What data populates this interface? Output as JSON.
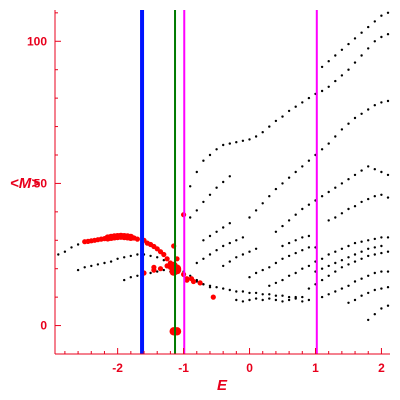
{
  "chart_data": {
    "type": "scatter",
    "title": "",
    "xlabel": "E",
    "ylabel": "<M>",
    "xlim": [
      -2.95,
      2.13
    ],
    "ylim": [
      -10,
      111
    ],
    "x_ticks": [
      -2,
      -1,
      0,
      1,
      2
    ],
    "x_tick_labels": [
      "-2",
      "-1",
      "0",
      "1",
      "2"
    ],
    "y_ticks": [
      0,
      50,
      100
    ],
    "y_tick_labels": [
      "0",
      "50",
      "100"
    ],
    "grid": false,
    "legend": "none",
    "colors": {
      "axis": "#e8001c",
      "dots": "#000000",
      "highlight": "#ff0000",
      "blue_line": "#0014ff",
      "green_line": "#007a00",
      "magenta_line": "#ff00ff"
    },
    "vertical_lines": [
      {
        "x": -1.63,
        "color": "#0014ff"
      },
      {
        "x": -1.13,
        "color": "#007a00"
      },
      {
        "x": -0.99,
        "color": "#ff00ff"
      },
      {
        "x": 1.02,
        "color": "#ff00ff"
      }
    ],
    "series": [
      {
        "color": "#000000",
        "points": [
          [
            -2.9,
            25
          ],
          [
            -2.8,
            26
          ],
          [
            -2.7,
            27.5
          ],
          [
            -2.6,
            28.5
          ],
          [
            -2.5,
            29.5
          ],
          [
            -2.4,
            30
          ],
          [
            -2.3,
            30.5
          ],
          [
            -2.6,
            19.5
          ],
          [
            -2.5,
            20.5
          ],
          [
            -2.4,
            21
          ],
          [
            -2.3,
            21.5
          ],
          [
            -2.2,
            22
          ],
          [
            -2.1,
            22.5
          ],
          [
            -2.0,
            23.5
          ],
          [
            -1.9,
            24
          ],
          [
            -1.8,
            24.5
          ],
          [
            -1.7,
            25
          ],
          [
            -1.6,
            25
          ],
          [
            -1.5,
            24.5
          ],
          [
            -1.4,
            24
          ],
          [
            -1.3,
            23
          ],
          [
            -1.2,
            21.5
          ],
          [
            -1.1,
            20.5
          ],
          [
            -1.0,
            19
          ],
          [
            -0.9,
            17.5
          ],
          [
            -0.8,
            16
          ],
          [
            -0.7,
            14.5
          ],
          [
            -0.6,
            13.5
          ],
          [
            -1.9,
            16
          ],
          [
            -1.8,
            17
          ],
          [
            -1.7,
            17.5
          ],
          [
            -1.6,
            18
          ],
          [
            -1.5,
            18.5
          ],
          [
            -1.4,
            19
          ],
          [
            -1.3,
            19.5
          ],
          [
            -1.2,
            19
          ],
          [
            -1.1,
            18.5
          ],
          [
            -1.0,
            17.5
          ],
          [
            -0.9,
            16.5
          ],
          [
            -0.8,
            15.5
          ],
          [
            -0.7,
            14.5
          ],
          [
            -0.6,
            14
          ],
          [
            -0.5,
            13.5
          ],
          [
            -0.4,
            13
          ],
          [
            -0.3,
            12.5
          ],
          [
            -0.2,
            12
          ],
          [
            -0.1,
            12
          ],
          [
            0.0,
            11.5
          ],
          [
            0.1,
            11.5
          ],
          [
            0.2,
            11
          ],
          [
            0.3,
            11
          ],
          [
            0.4,
            10.5
          ],
          [
            0.5,
            10.5
          ],
          [
            0.6,
            10
          ],
          [
            0.7,
            10
          ],
          [
            0.8,
            10
          ],
          [
            -0.9,
            49
          ],
          [
            -0.8,
            54
          ],
          [
            -0.7,
            58
          ],
          [
            -0.6,
            60
          ],
          [
            -0.5,
            62
          ],
          [
            -0.4,
            63.5
          ],
          [
            -0.3,
            64
          ],
          [
            -0.2,
            64.5
          ],
          [
            -0.1,
            65
          ],
          [
            0.0,
            65.5
          ],
          [
            0.1,
            66.5
          ],
          [
            0.2,
            68
          ],
          [
            0.3,
            70
          ],
          [
            0.4,
            72
          ],
          [
            0.5,
            73.5
          ],
          [
            0.6,
            75.5
          ],
          [
            0.7,
            77
          ],
          [
            0.8,
            78.5
          ],
          [
            0.9,
            80
          ],
          [
            1.0,
            81.5
          ],
          [
            1.1,
            82.5
          ],
          [
            1.2,
            84
          ],
          [
            1.3,
            86
          ],
          [
            1.4,
            88
          ],
          [
            1.5,
            90
          ],
          [
            1.6,
            92.5
          ],
          [
            1.7,
            95
          ],
          [
            1.8,
            97.5
          ],
          [
            1.9,
            100
          ],
          [
            2.0,
            101.5
          ],
          [
            2.1,
            102.5
          ],
          [
            1.1,
            91
          ],
          [
            1.2,
            93
          ],
          [
            1.3,
            95
          ],
          [
            1.4,
            97
          ],
          [
            1.5,
            99
          ],
          [
            1.6,
            101
          ],
          [
            1.7,
            103
          ],
          [
            1.8,
            105
          ],
          [
            1.9,
            107
          ],
          [
            2.0,
            109
          ],
          [
            2.1,
            110
          ],
          [
            0.0,
            38
          ],
          [
            0.1,
            40.5
          ],
          [
            0.2,
            43
          ],
          [
            0.3,
            45.5
          ],
          [
            0.4,
            48
          ],
          [
            0.5,
            50
          ],
          [
            0.6,
            52
          ],
          [
            0.7,
            54
          ],
          [
            0.8,
            56
          ],
          [
            0.9,
            58
          ],
          [
            1.0,
            60
          ],
          [
            1.1,
            62
          ],
          [
            1.2,
            64
          ],
          [
            1.3,
            66.5
          ],
          [
            1.4,
            69
          ],
          [
            1.5,
            71
          ],
          [
            1.6,
            73
          ],
          [
            1.7,
            74.5
          ],
          [
            1.8,
            76
          ],
          [
            1.9,
            77.5
          ],
          [
            2.0,
            78.5
          ],
          [
            2.1,
            79
          ],
          [
            -0.9,
            38
          ],
          [
            -0.8,
            40.5
          ],
          [
            -0.7,
            43.5
          ],
          [
            -0.6,
            46
          ],
          [
            -0.5,
            48.5
          ],
          [
            -0.4,
            50.5
          ],
          [
            -0.3,
            52.5
          ],
          [
            0.4,
            33
          ],
          [
            0.5,
            35
          ],
          [
            0.6,
            37
          ],
          [
            0.7,
            39
          ],
          [
            0.8,
            41
          ],
          [
            0.9,
            42.5
          ],
          [
            1.0,
            44
          ],
          [
            1.1,
            45.5
          ],
          [
            1.2,
            47
          ],
          [
            1.3,
            48.5
          ],
          [
            1.4,
            50
          ],
          [
            1.5,
            51.5
          ],
          [
            1.6,
            53
          ],
          [
            1.7,
            54.5
          ],
          [
            1.8,
            56
          ],
          [
            1.9,
            55
          ],
          [
            2.0,
            54
          ],
          [
            2.1,
            53
          ],
          [
            1.2,
            37
          ],
          [
            1.3,
            38
          ],
          [
            1.4,
            39.5
          ],
          [
            1.5,
            41
          ],
          [
            1.6,
            42
          ],
          [
            1.7,
            43.5
          ],
          [
            1.8,
            44.5
          ],
          [
            1.9,
            45.5
          ],
          [
            2.0,
            46
          ],
          [
            2.1,
            45
          ],
          [
            -0.7,
            30
          ],
          [
            -0.6,
            31.5
          ],
          [
            -0.5,
            33
          ],
          [
            -0.4,
            34.5
          ],
          [
            -0.3,
            36
          ],
          [
            -0.8,
            22
          ],
          [
            -0.7,
            23.5
          ],
          [
            -0.6,
            25
          ],
          [
            -0.5,
            26.5
          ],
          [
            -0.4,
            28
          ],
          [
            -0.3,
            29
          ],
          [
            -0.2,
            30
          ],
          [
            -0.1,
            31
          ],
          [
            -0.4,
            21
          ],
          [
            -0.3,
            22.5
          ],
          [
            -0.2,
            24
          ],
          [
            -0.1,
            25
          ],
          [
            0.0,
            26
          ],
          [
            0.1,
            27
          ],
          [
            0.0,
            17
          ],
          [
            0.1,
            18.5
          ],
          [
            0.2,
            19.5
          ],
          [
            0.3,
            20.5
          ],
          [
            0.4,
            22
          ],
          [
            0.5,
            23.5
          ],
          [
            0.6,
            24.5
          ],
          [
            0.7,
            25.5
          ],
          [
            0.8,
            26.5
          ],
          [
            0.9,
            27.5
          ],
          [
            1.0,
            27.5
          ],
          [
            0.3,
            14
          ],
          [
            0.4,
            15
          ],
          [
            0.5,
            16
          ],
          [
            0.6,
            17.5
          ],
          [
            0.7,
            18.5
          ],
          [
            0.8,
            20
          ],
          [
            0.9,
            21
          ],
          [
            1.0,
            22.5
          ],
          [
            1.1,
            23.5
          ],
          [
            1.2,
            25
          ],
          [
            1.3,
            26
          ],
          [
            1.4,
            27
          ],
          [
            1.5,
            28
          ],
          [
            1.6,
            29
          ],
          [
            1.7,
            29.5
          ],
          [
            1.8,
            30
          ],
          [
            1.9,
            30.5
          ],
          [
            2.0,
            31
          ],
          [
            2.1,
            31
          ],
          [
            0.9,
            13
          ],
          [
            1.0,
            14.5
          ],
          [
            1.1,
            16
          ],
          [
            1.2,
            17.5
          ],
          [
            1.3,
            19
          ],
          [
            1.4,
            20.5
          ],
          [
            1.5,
            21.5
          ],
          [
            1.6,
            22.5
          ],
          [
            1.7,
            23.5
          ],
          [
            1.8,
            24.5
          ],
          [
            1.9,
            25
          ],
          [
            2.0,
            25.5
          ],
          [
            2.1,
            26
          ],
          [
            1.1,
            10
          ],
          [
            1.2,
            11
          ],
          [
            1.3,
            12
          ],
          [
            1.4,
            13
          ],
          [
            1.5,
            14
          ],
          [
            1.6,
            15.5
          ],
          [
            1.7,
            16.5
          ],
          [
            1.8,
            17.5
          ],
          [
            1.9,
            18.5
          ],
          [
            2.0,
            19
          ],
          [
            2.1,
            19
          ],
          [
            1.0,
            19
          ],
          [
            1.1,
            20
          ],
          [
            1.2,
            21
          ],
          [
            1.3,
            22
          ],
          [
            1.4,
            23
          ],
          [
            1.5,
            24
          ],
          [
            1.6,
            25
          ],
          [
            1.7,
            26
          ],
          [
            1.8,
            27
          ],
          [
            1.9,
            27.5
          ],
          [
            2.0,
            28
          ],
          [
            0.5,
            28
          ],
          [
            0.6,
            29
          ],
          [
            0.7,
            30
          ],
          [
            0.8,
            31
          ],
          [
            0.9,
            31.5
          ],
          [
            1.5,
            8
          ],
          [
            1.6,
            9
          ],
          [
            1.7,
            10.5
          ],
          [
            1.8,
            11.5
          ],
          [
            1.9,
            12.5
          ],
          [
            2.0,
            13
          ],
          [
            2.1,
            13.5
          ],
          [
            1.8,
            2
          ],
          [
            1.9,
            4
          ],
          [
            2.0,
            6
          ],
          [
            2.1,
            7
          ],
          [
            -0.2,
            9
          ],
          [
            -0.1,
            8.5
          ],
          [
            0.0,
            9
          ],
          [
            0.1,
            9.5
          ],
          [
            0.2,
            9
          ],
          [
            0.3,
            9.5
          ],
          [
            0.4,
            9
          ],
          [
            0.5,
            8.5
          ],
          [
            0.6,
            9
          ],
          [
            0.7,
            9.5
          ],
          [
            0.8,
            8.5
          ],
          [
            0.9,
            9
          ]
        ]
      },
      {
        "color": "#ff0000",
        "points": [
          [
            -2.5,
            29.5
          ],
          [
            -2.45,
            29.6
          ],
          [
            -2.4,
            29.8
          ],
          [
            -2.35,
            30
          ],
          [
            -2.3,
            30.2
          ],
          [
            -2.25,
            30.4
          ],
          [
            -2.2,
            30.6
          ],
          [
            -2.15,
            30.8
          ],
          [
            -2.1,
            31
          ],
          [
            -2.05,
            31.2
          ],
          [
            -2.0,
            31.3
          ],
          [
            -1.95,
            31.4
          ],
          [
            -1.9,
            31.3
          ],
          [
            -1.85,
            31.2
          ],
          [
            -1.8,
            31
          ],
          [
            -1.75,
            30.8
          ],
          [
            -1.7,
            30.4
          ],
          [
            -1.6,
            30
          ],
          [
            -1.55,
            29
          ],
          [
            -1.5,
            28.5
          ],
          [
            -1.45,
            27.8
          ],
          [
            -1.4,
            27
          ],
          [
            -1.35,
            26
          ],
          [
            -1.3,
            25
          ],
          [
            -1.25,
            23.5
          ],
          [
            -1.2,
            22
          ],
          [
            -1.15,
            20.5
          ],
          [
            -1.1,
            20
          ],
          [
            -1.15,
            28
          ],
          [
            -1.0,
            39
          ],
          [
            -1.45,
            19.5
          ],
          [
            -1.35,
            20
          ],
          [
            -1.25,
            21
          ],
          [
            -1.15,
            20.5
          ],
          [
            -1.0,
            18
          ],
          [
            -0.95,
            16
          ],
          [
            -0.85,
            15.5
          ],
          [
            -0.75,
            15
          ],
          [
            -1.6,
            18.5
          ],
          [
            -1.45,
            20.5
          ],
          [
            -1.1,
            23.5
          ],
          [
            -1.15,
            21
          ],
          [
            -1.2,
            20.5
          ],
          [
            -1.1,
            19.5
          ],
          [
            -1.15,
            19
          ],
          [
            -0.55,
            10
          ],
          [
            -1.15,
            -2
          ],
          [
            -1.1,
            -2
          ],
          [
            -0.95,
            16.5
          ],
          [
            -0.88,
            16.5
          ]
        ]
      }
    ]
  }
}
